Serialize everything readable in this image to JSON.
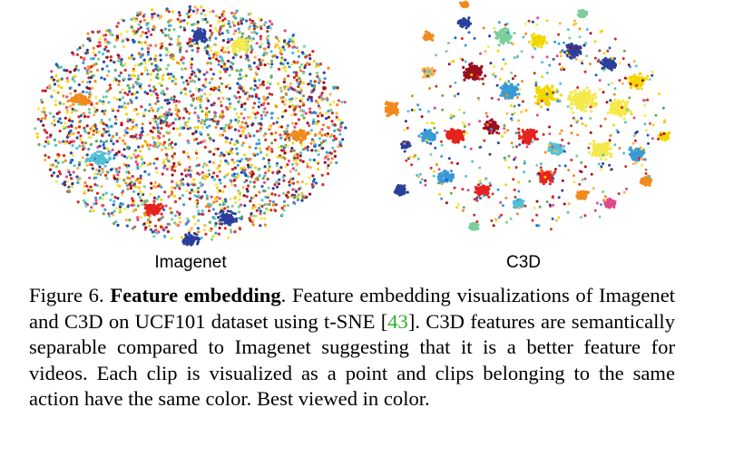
{
  "panels": [
    {
      "label": "Imagenet"
    },
    {
      "label": "C3D"
    }
  ],
  "caption": {
    "prefix": "Figure 6.",
    "bold_title": "Feature embedding",
    "text_before_cite": ". Feature embedding visualizations of Imagenet and C3D on UCF101 dataset using t-SNE [",
    "citation": "43",
    "text_after_cite": "]. C3D features are semantically separable compared to Imagenet suggesting that it is a better feature for videos. Each clip is visualized as a point and clips belonging to the same action have the same color. Best viewed in color."
  },
  "colors": {
    "palette": [
      "#e6231f",
      "#f08a1c",
      "#f2d600",
      "#f4e94a",
      "#3a9ad6",
      "#2a3f9a",
      "#53c0d8",
      "#7ccf9a",
      "#9a0f1f",
      "#e04a8a",
      "#6aa84f",
      "#ffb347",
      "#1f5fbf",
      "#c0392b"
    ],
    "citation": "#2bb02b"
  }
}
